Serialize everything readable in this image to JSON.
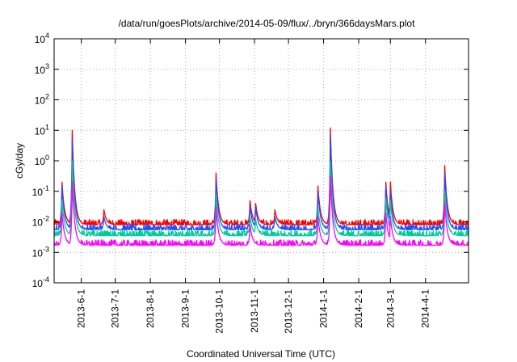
{
  "chart_data": {
    "type": "line",
    "title": "/data/run/goesPlots/archive/2014-05-09/flux/../bryn/366daysMars.plot",
    "xlabel": "Coordinated Universal Time (UTC)",
    "ylabel": "cGy/day",
    "y_scale": "log",
    "xlim": [
      "2013-05-08",
      "2014-05-09"
    ],
    "ylim": [
      0.0001,
      10000
    ],
    "grid": true,
    "y_ticks": [
      {
        "value": 0.0001,
        "base": "10",
        "exp": "-4"
      },
      {
        "value": 0.001,
        "base": "10",
        "exp": "-3"
      },
      {
        "value": 0.01,
        "base": "10",
        "exp": "-2"
      },
      {
        "value": 0.1,
        "base": "10",
        "exp": "-1"
      },
      {
        "value": 1,
        "base": "10",
        "exp": "0"
      },
      {
        "value": 10,
        "base": "10",
        "exp": "1"
      },
      {
        "value": 100,
        "base": "10",
        "exp": "2"
      },
      {
        "value": 1000,
        "base": "10",
        "exp": "3"
      },
      {
        "value": 10000,
        "base": "10",
        "exp": "4"
      }
    ],
    "x_ticks": [
      {
        "date": "2013-06-01",
        "label": "2013-6-1"
      },
      {
        "date": "2013-07-01",
        "label": "2013-7-1"
      },
      {
        "date": "2013-08-01",
        "label": "2013-8-1"
      },
      {
        "date": "2013-09-01",
        "label": "2013-9-1"
      },
      {
        "date": "2013-10-01",
        "label": "2013-10-1"
      },
      {
        "date": "2013-11-01",
        "label": "2013-11-1"
      },
      {
        "date": "2013-12-01",
        "label": "2013-12-1"
      },
      {
        "date": "2014-01-01",
        "label": "2014-1-1"
      },
      {
        "date": "2014-02-01",
        "label": "2014-2-1"
      },
      {
        "date": "2014-03-01",
        "label": "2014-3-1"
      },
      {
        "date": "2014-04-01",
        "label": "2014-4-1"
      }
    ],
    "series": [
      {
        "color": "#ff0000",
        "baseline": 0.008,
        "peaks": [
          [
            "2013-05-15",
            0.2
          ],
          [
            "2013-05-24",
            10
          ],
          [
            "2013-06-21",
            0.025
          ],
          [
            "2013-09-28",
            0.4
          ],
          [
            "2013-10-28",
            0.05
          ],
          [
            "2013-11-02",
            0.04
          ],
          [
            "2013-11-19",
            0.025
          ],
          [
            "2013-12-27",
            0.15
          ],
          [
            "2014-01-07",
            12
          ],
          [
            "2014-02-25",
            0.2
          ],
          [
            "2014-03-01",
            0.2
          ],
          [
            "2014-04-18",
            0.7
          ]
        ]
      },
      {
        "color": "#1f4fff",
        "baseline": 0.0055,
        "peaks": [
          [
            "2013-05-15",
            0.15
          ],
          [
            "2013-05-24",
            5
          ],
          [
            "2013-06-21",
            0.015
          ],
          [
            "2013-09-28",
            0.25
          ],
          [
            "2013-10-28",
            0.035
          ],
          [
            "2013-11-02",
            0.03
          ],
          [
            "2013-11-19",
            0.015
          ],
          [
            "2013-12-27",
            0.1
          ],
          [
            "2014-01-07",
            7
          ],
          [
            "2014-02-25",
            0.15
          ],
          [
            "2014-03-01",
            0.1
          ],
          [
            "2014-04-18",
            0.4
          ]
        ]
      },
      {
        "color": "#00cc99",
        "baseline": 0.0035,
        "peaks": [
          [
            "2013-05-15",
            0.05
          ],
          [
            "2013-05-24",
            1
          ],
          [
            "2013-09-28",
            0.08
          ],
          [
            "2013-10-28",
            0.015
          ],
          [
            "2013-11-02",
            0.012
          ],
          [
            "2013-12-27",
            0.03
          ],
          [
            "2014-01-07",
            1
          ],
          [
            "2014-02-25",
            0.06
          ],
          [
            "2014-03-01",
            0.05
          ],
          [
            "2014-04-18",
            0.1
          ]
        ]
      },
      {
        "color": "#ff00ff",
        "baseline": 0.0017,
        "peaks": [
          [
            "2013-05-15",
            0.02
          ],
          [
            "2013-05-24",
            0.2
          ],
          [
            "2013-09-28",
            0.03
          ],
          [
            "2013-10-28",
            0.008
          ],
          [
            "2013-12-27",
            0.015
          ],
          [
            "2014-01-07",
            0.3
          ],
          [
            "2014-02-25",
            0.02
          ],
          [
            "2014-03-01",
            0.015
          ],
          [
            "2014-04-18",
            0.04
          ]
        ]
      }
    ]
  }
}
